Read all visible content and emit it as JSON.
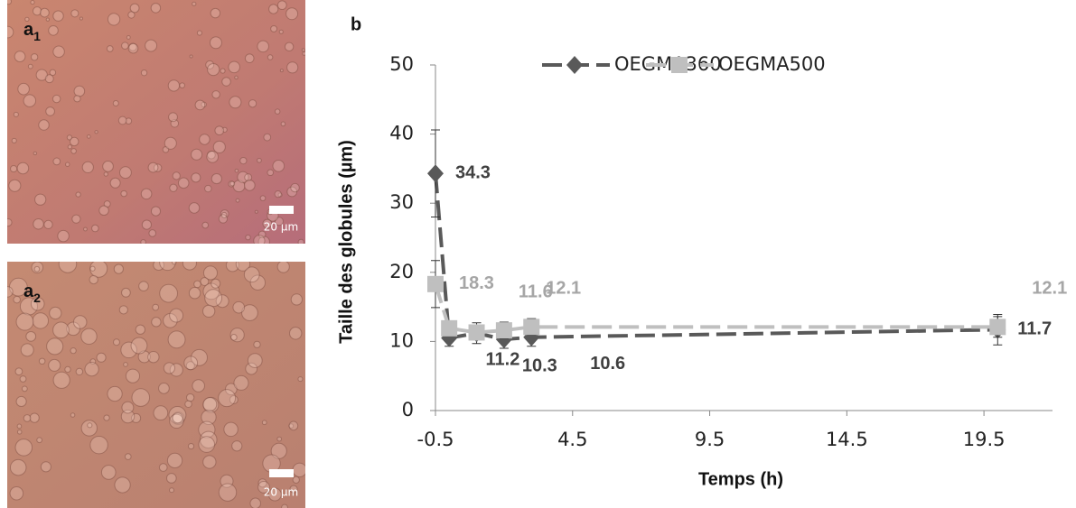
{
  "panels": [
    {
      "label": "a",
      "sub": "1",
      "scale_bar": "20 µm"
    },
    {
      "label": "a",
      "sub": "2",
      "scale_bar": "20 µm"
    }
  ],
  "chart_data": {
    "type": "line",
    "panel_label": "b",
    "x_label": "Temps (h)",
    "y_label": "Taille des globules (µm)",
    "x": [
      -0.5,
      0,
      1,
      2,
      3,
      20
    ],
    "series": [
      {
        "name": "OEGMA360",
        "color": "#595959",
        "marker": "diamond",
        "values": [
          34.3,
          10.5,
          11.2,
          10.3,
          10.6,
          11.7
        ],
        "errors": [
          6.3,
          1.2,
          1.5,
          1.3,
          1.3,
          2.2
        ],
        "value_labels": [
          "34.3",
          null,
          "11.2",
          "10.3",
          "10.6",
          "11.7"
        ]
      },
      {
        "name": "OEGMA500",
        "color": "#bfbfbf",
        "marker": "square",
        "values": [
          18.3,
          11.9,
          11.3,
          11.6,
          12.1,
          12.1
        ],
        "errors": [
          3.4,
          1.0,
          1.0,
          1.2,
          1.2,
          1.5
        ],
        "value_labels": [
          "18.3",
          null,
          null,
          "11.6",
          "12.1",
          "12.1"
        ]
      }
    ],
    "xlim": [
      -0.5,
      22
    ],
    "xticks": [
      -0.5,
      4.5,
      9.5,
      14.5,
      19.5
    ],
    "ylim": [
      0,
      50
    ],
    "yticks": [
      0,
      10,
      20,
      30,
      40,
      50
    ],
    "legend": "top",
    "line_style": "dashed"
  }
}
